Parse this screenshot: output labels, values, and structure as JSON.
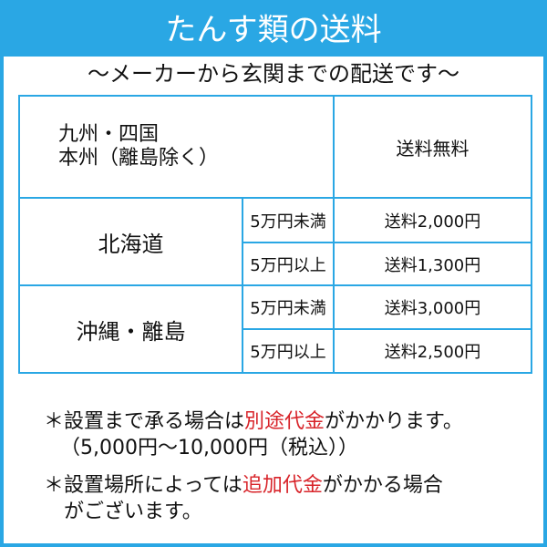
{
  "title": "たんす類の送料",
  "subtitle": "～メーカーから玄関までの配送です～",
  "accent_color": "#2aa7e4",
  "table": {
    "row1": {
      "region_line1": "九州・四国",
      "region_line2": "本州（離島除く）",
      "fee": "送料無料"
    },
    "row2": {
      "region": "北海道",
      "tiers": [
        {
          "condition": "5万円未満",
          "fee": "送料2,000円"
        },
        {
          "condition": "5万円以上",
          "fee": "送料1,300円"
        }
      ]
    },
    "row3": {
      "region": "沖縄・離島",
      "tiers": [
        {
          "condition": "5万円未満",
          "fee": "送料3,000円"
        },
        {
          "condition": "5万円以上",
          "fee": "送料2,500円"
        }
      ]
    }
  },
  "notes": [
    {
      "prefix": "＊設置まで承る場合は",
      "highlight": "別途代金",
      "suffix": "がかかります。",
      "line2": "（5,000円～10,000円（税込））"
    },
    {
      "prefix": "＊設置場所によっては",
      "highlight": "追加代金",
      "suffix": "がかかる場合",
      "line2": "がございます。"
    }
  ],
  "highlight_color": "#d8242a"
}
